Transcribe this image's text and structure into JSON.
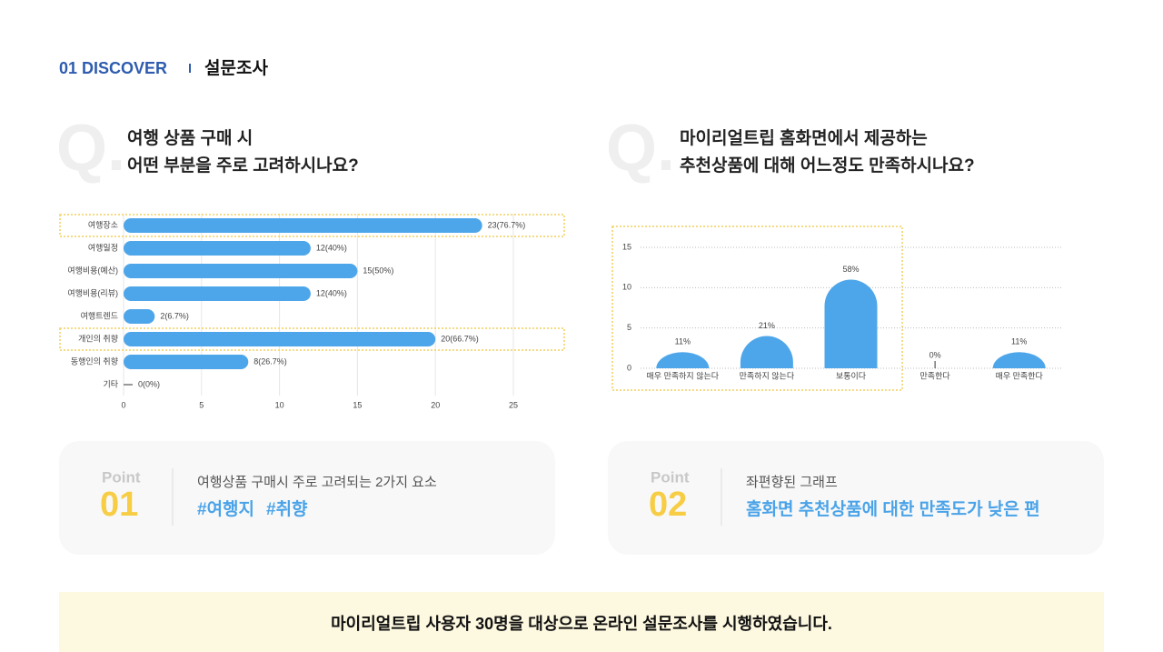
{
  "header": {
    "section": "01 DISCOVER",
    "title": "설문조사"
  },
  "questions": [
    {
      "mark": "Q.",
      "lines": [
        "여행 상품 구매 시",
        "어떤 부분을 주로 고려하시나요?"
      ]
    },
    {
      "mark": "Q.",
      "lines": [
        "마이리얼트립 홈화면에서 제공하는",
        "추천상품에 대해 어느정도 만족하시나요?"
      ]
    }
  ],
  "chart_data": [
    {
      "type": "bar",
      "orientation": "horizontal",
      "categories": [
        "여행장소",
        "여행일정",
        "여행비용(예산)",
        "여행비용(리뷰)",
        "여행트렌드",
        "개인의 취향",
        "동행인의 취향",
        "기타"
      ],
      "values": [
        23,
        12,
        15,
        12,
        2,
        20,
        8,
        0
      ],
      "value_labels": [
        "23(76.7%)",
        "12(40%)",
        "15(50%)",
        "12(40%)",
        "2(6.7%)",
        "20(66.7%)",
        "8(26.7%)",
        "0(0%)"
      ],
      "color": "#4ea6ea",
      "xlim": [
        0,
        25
      ],
      "xticks": [
        0,
        5,
        10,
        15,
        20,
        25
      ],
      "grid": true,
      "highlight": [
        0,
        5
      ],
      "highlight_color": "#f2cf5b"
    },
    {
      "type": "bar",
      "orientation": "vertical",
      "categories": [
        "매우 만족하지 않는다",
        "만족하지 않는다",
        "보통이다",
        "만족한다",
        "매우 만족한다"
      ],
      "values": [
        2,
        4,
        11,
        0,
        2
      ],
      "value_labels": [
        "11%",
        "21%",
        "58%",
        "0%",
        "11%"
      ],
      "color": "#4ea6ea",
      "ylim": [
        0,
        15
      ],
      "yticks": [
        0,
        5,
        10,
        15
      ],
      "grid": true,
      "highlight": [
        0,
        1,
        2
      ],
      "highlight_color": "#f2cf5b"
    }
  ],
  "points": [
    {
      "label": "Point",
      "number": "01",
      "text": "여행상품 구매시 주로 고려되는 2가지 요소",
      "tags": [
        "#여행지",
        "#취향"
      ]
    },
    {
      "label": "Point",
      "number": "02",
      "text": "좌편향된 그래프",
      "tags": [
        "홈화면 추천상품에 대한 만족도가 낮은 편"
      ]
    }
  ],
  "footer": "마이리얼트립 사용자 30명을 대상으로 온라인 설문조사를 시행하였습니다."
}
